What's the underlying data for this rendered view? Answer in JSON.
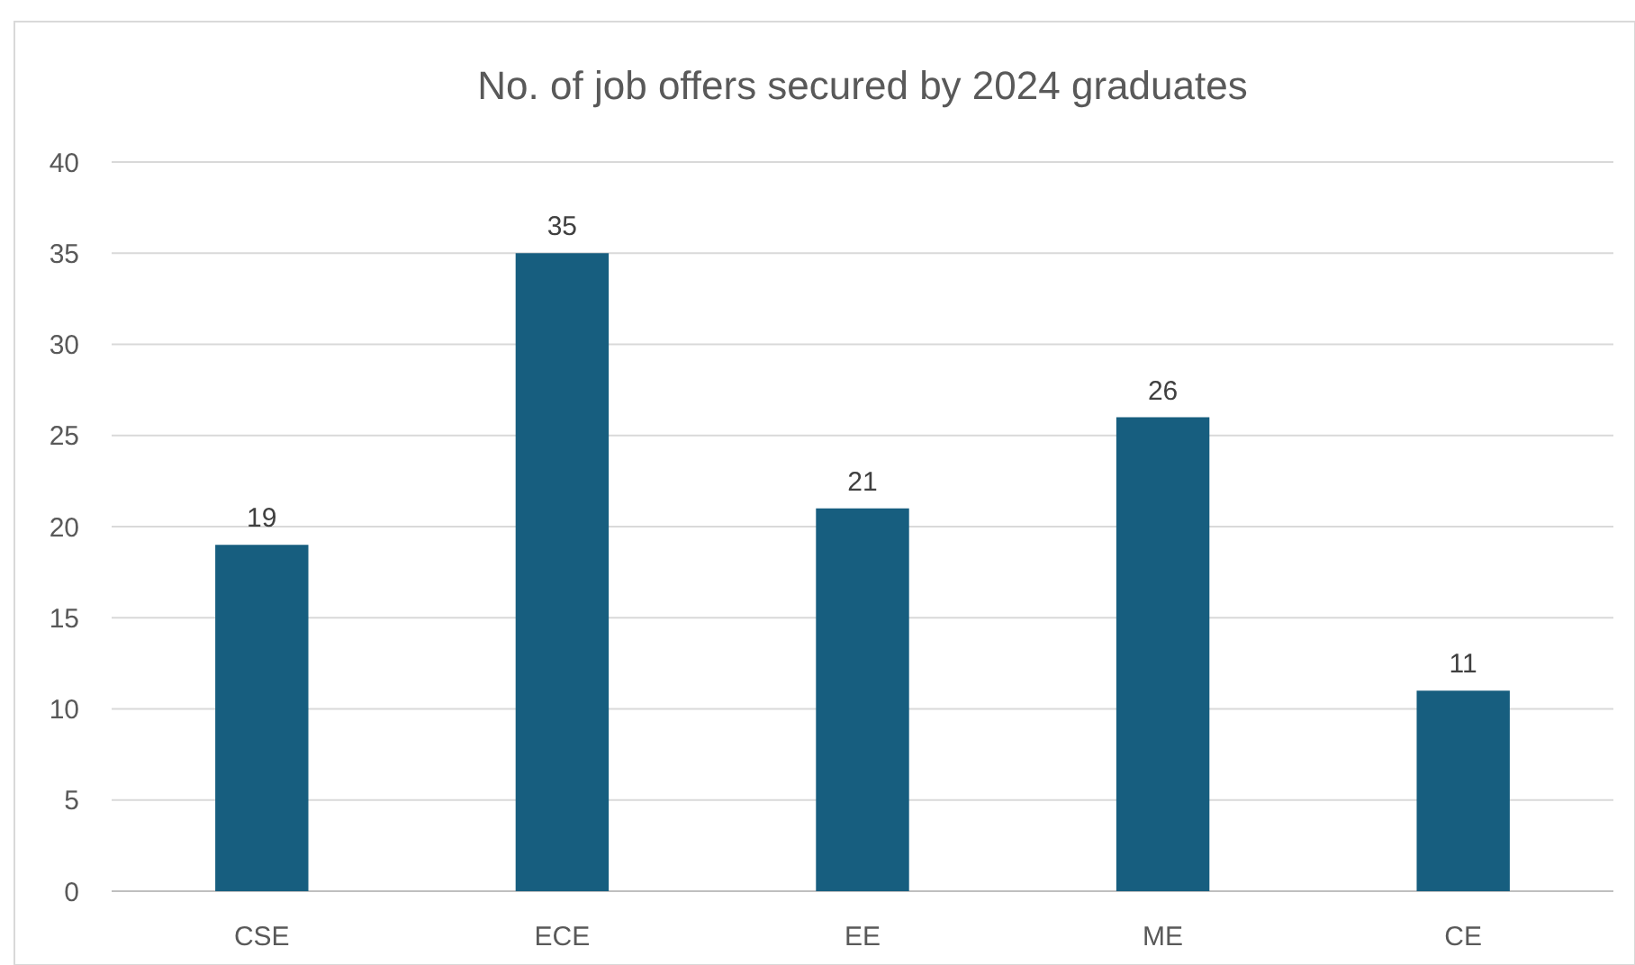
{
  "chart_data": {
    "type": "bar",
    "title": "No. of job offers secured by 2024 graduates",
    "categories": [
      "CSE",
      "ECE",
      "EE",
      "ME",
      "CE"
    ],
    "values": [
      19,
      35,
      21,
      26,
      11
    ],
    "color": "#175e7f",
    "ylim": [
      0,
      40
    ],
    "yticks": [
      0,
      5,
      10,
      15,
      20,
      25,
      30,
      35,
      40
    ],
    "grid": "y",
    "data_labels": true
  }
}
